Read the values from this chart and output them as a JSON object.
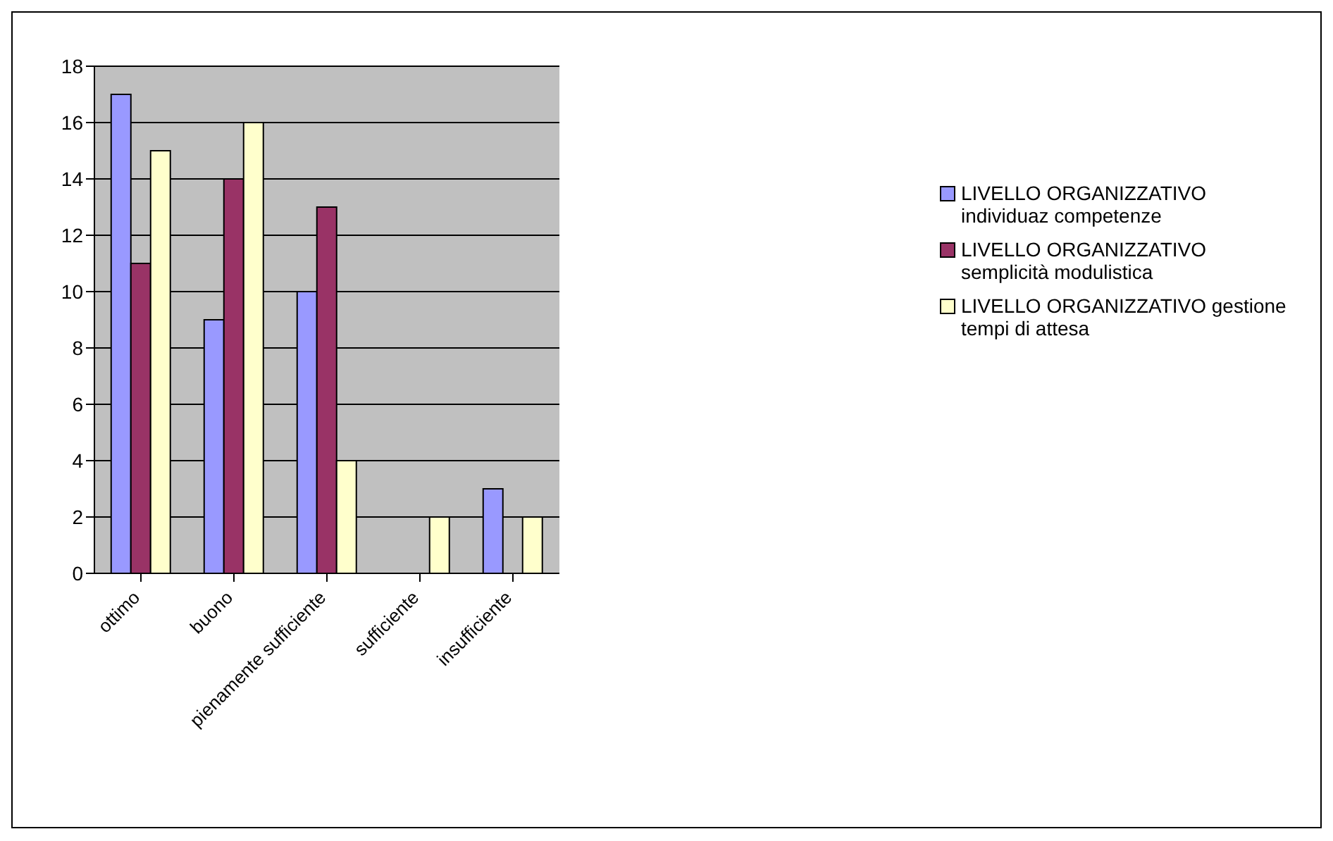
{
  "chart_data": {
    "type": "bar",
    "categories": [
      "ottimo",
      "buono",
      "pienamente sufficiente",
      "sufficiente",
      "insufficiente"
    ],
    "series": [
      {
        "name": "LIVELLO ORGANIZZATIVO individuaz competenze",
        "color": "#9999ff",
        "values": [
          17,
          9,
          10,
          0,
          3
        ]
      },
      {
        "name": "LIVELLO ORGANIZZATIVO semplicità modulistica",
        "color": "#993366",
        "values": [
          11,
          14,
          13,
          0,
          0
        ]
      },
      {
        "name": "LIVELLO ORGANIZZATIVO gestione tempi di attesa",
        "color": "#ffffcc",
        "values": [
          15,
          16,
          4,
          2,
          2
        ]
      }
    ],
    "ylim": [
      0,
      18
    ],
    "yticks": [
      0,
      2,
      4,
      6,
      8,
      10,
      12,
      14,
      16,
      18
    ],
    "grid": "y",
    "legend": "right"
  }
}
